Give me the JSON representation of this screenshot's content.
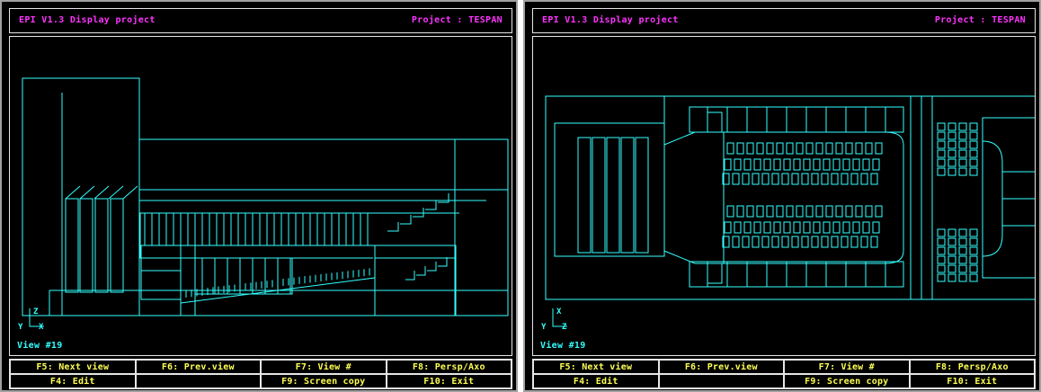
{
  "colors": {
    "title": "#ff33ff",
    "wireframe": "#33ffff",
    "fkey": "#ffff55",
    "frame": "#e6e6e6"
  },
  "panels": [
    {
      "app_title": "EPI V1.3  Display project",
      "project_label": "Project : TESPAN",
      "view_label": "View #19",
      "axis_h": "Y",
      "axis_v": "Z",
      "axis_mark": "X",
      "drawing": "elevation"
    },
    {
      "app_title": "EPI V1.3  Display project",
      "project_label": "Project : TESPAN",
      "view_label": "View #19",
      "axis_h": "Y",
      "axis_v": "X",
      "axis_mark": "Z",
      "drawing": "plan"
    }
  ],
  "function_keys": [
    {
      "label": "F5: Next view"
    },
    {
      "label": "F6: Prev.view"
    },
    {
      "label": "F7: View #"
    },
    {
      "label": "F8: Persp/Axo"
    },
    {
      "label": "F4: Edit"
    },
    {
      "label": ""
    },
    {
      "label": "F9: Screen copy"
    },
    {
      "label": "F10: Exit"
    }
  ]
}
